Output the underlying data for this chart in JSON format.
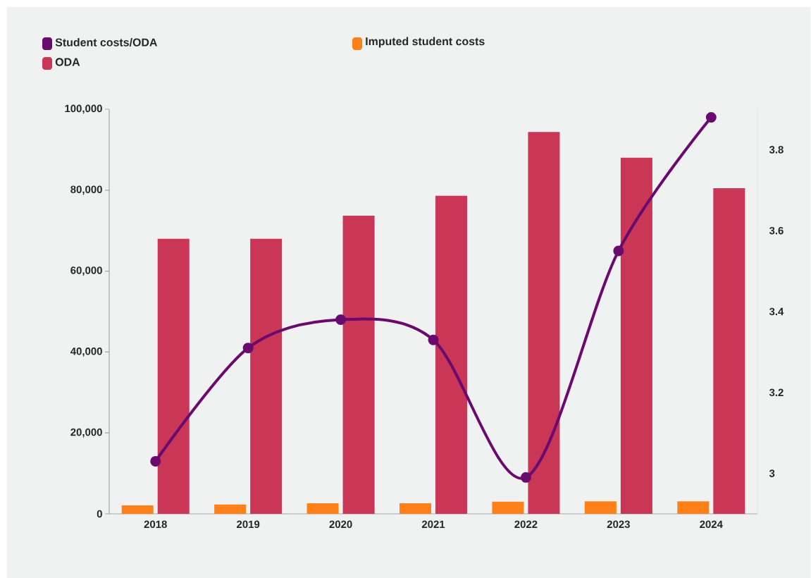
{
  "chart_data": {
    "type": "bar",
    "categories": [
      "2018",
      "2019",
      "2020",
      "2021",
      "2022",
      "2023",
      "2024"
    ],
    "series": [
      {
        "name": "Student costs/ODA",
        "type": "line",
        "axis": "y2",
        "color": "#6a0a6e",
        "values": [
          3.03,
          3.31,
          3.38,
          3.33,
          2.99,
          3.55,
          3.88
        ]
      },
      {
        "name": "Imputed student costs",
        "color": "#fd8019",
        "values": [
          2100,
          2300,
          2600,
          2600,
          3000,
          3100,
          3100
        ]
      },
      {
        "name": "ODA",
        "color": "#c93656",
        "values": [
          68000,
          68000,
          73700,
          78600,
          94400,
          88000,
          80500
        ]
      }
    ],
    "ylim": [
      0,
      100000
    ],
    "yticks": [
      0,
      {
        "value": 20000,
        "label": "20,000"
      },
      {
        "value": 40000,
        "label": "40,000"
      },
      {
        "value": 60000,
        "label": "60,000"
      },
      {
        "value": 80000,
        "label": "80,000"
      },
      {
        "value": 100000,
        "label": "100,000"
      }
    ],
    "y2lim": [
      2.9,
      3.9
    ],
    "y2ticks": [
      3,
      3.2,
      3.4,
      3.6,
      3.8
    ],
    "grid": false,
    "legend": "top left",
    "marker": "circle",
    "line_style": "solid"
  }
}
